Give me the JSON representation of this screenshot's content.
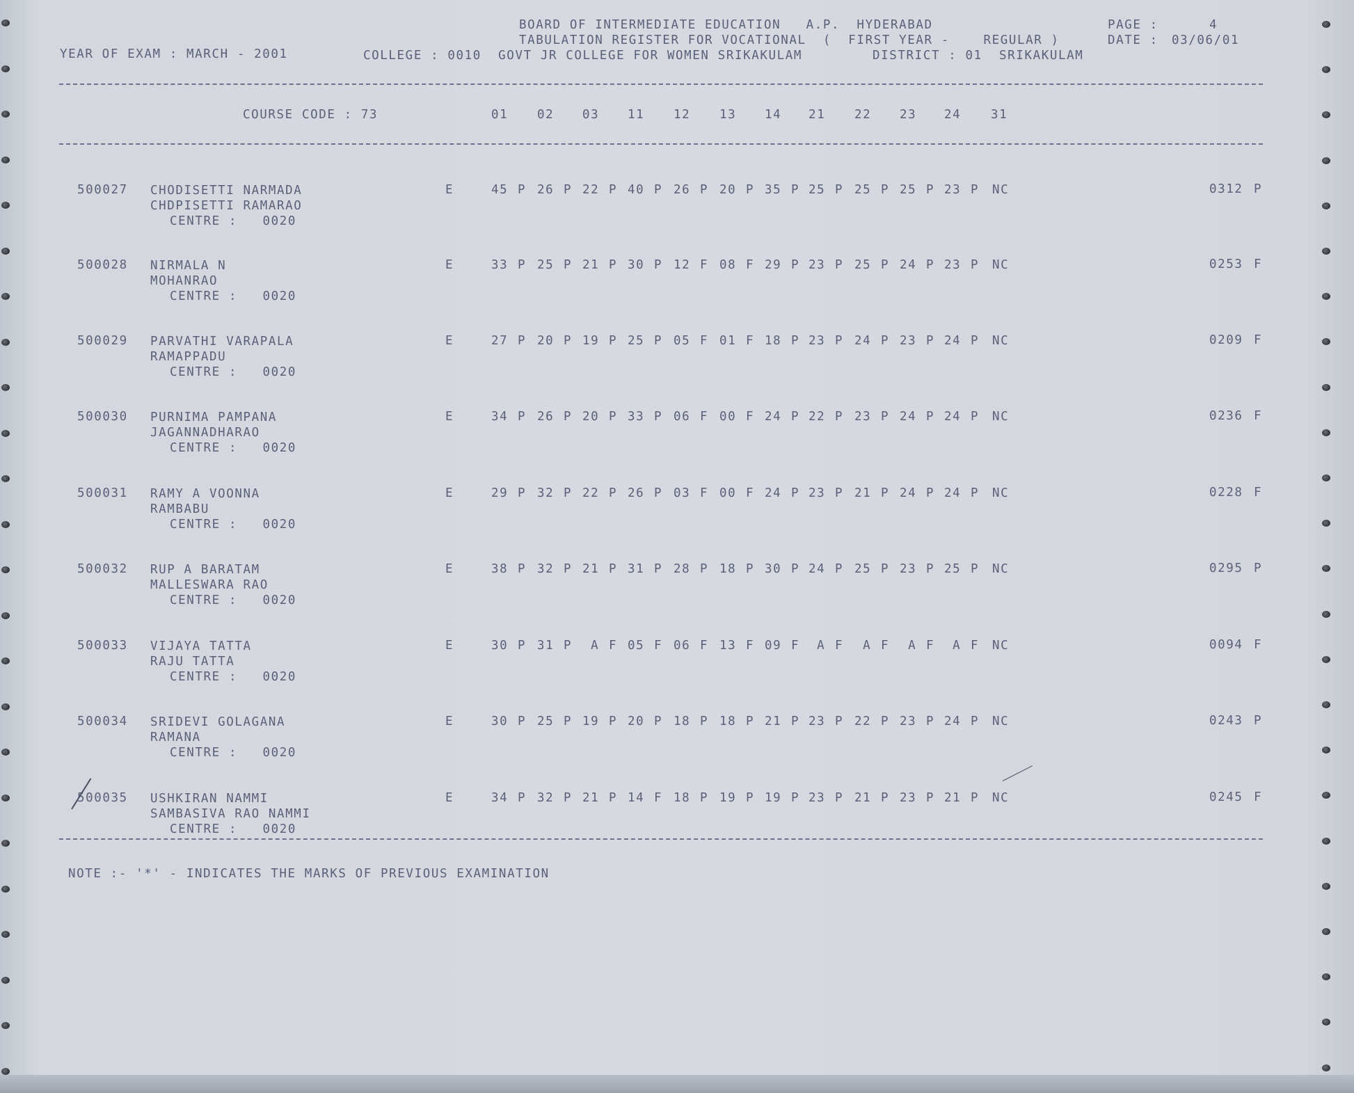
{
  "header": {
    "board": "BOARD OF INTERMEDIATE EDUCATION   A.P.  HYDERABAD",
    "register": "TABULATION REGISTER FOR VOCATIONAL  (  FIRST YEAR -    REGULAR )",
    "page_label": "PAGE :",
    "page_number": "4",
    "date_label": "DATE :",
    "date_value": "03/06/01",
    "year_of_exam": "YEAR OF EXAM : MARCH - 2001",
    "college": "COLLEGE : 0010  GOVT JR COLLEGE FOR WOMEN SRIKAKULAM",
    "district": "DISTRICT : 01  SRIKAKULAM"
  },
  "columns": {
    "course_code": "COURSE CODE : 73",
    "codes": [
      "01",
      "02",
      "03",
      "11",
      "12",
      "13",
      "14",
      "21",
      "22",
      "23",
      "24",
      "31"
    ]
  },
  "students": [
    {
      "roll": "500027",
      "name": "CHODISETTI NARMADA",
      "parent": "CHDPISETTI RAMARAO",
      "centre": "CENTRE :   0020",
      "medium": "E",
      "marks": [
        "45",
        "P",
        "26",
        "P",
        "22",
        "P",
        "40",
        "P",
        "26",
        "P",
        "20",
        "P",
        "35",
        "P",
        "25",
        "P",
        "25",
        "P",
        "25",
        "P",
        "23",
        "P",
        "NC"
      ],
      "total": "0312",
      "result": "P"
    },
    {
      "roll": "500028",
      "name": "NIRMALA N",
      "parent": "MOHANRAO",
      "centre": "CENTRE :   0020",
      "medium": "E",
      "marks": [
        "33",
        "P",
        "25",
        "P",
        "21",
        "P",
        "30",
        "P",
        "12",
        "F",
        "08",
        "F",
        "29",
        "P",
        "23",
        "P",
        "25",
        "P",
        "24",
        "P",
        "23",
        "P",
        "NC"
      ],
      "total": "0253",
      "result": "F"
    },
    {
      "roll": "500029",
      "name": "PARVATHI VARAPALA",
      "parent": "RAMAPPADU",
      "centre": "CENTRE :   0020",
      "medium": "E",
      "marks": [
        "27",
        "P",
        "20",
        "P",
        "19",
        "P",
        "25",
        "P",
        "05",
        "F",
        "01",
        "F",
        "18",
        "P",
        "23",
        "P",
        "24",
        "P",
        "23",
        "P",
        "24",
        "P",
        "NC"
      ],
      "total": "0209",
      "result": "F"
    },
    {
      "roll": "500030",
      "name": "PURNIMA PAMPANA",
      "parent": "JAGANNADHARAO",
      "centre": "CENTRE :   0020",
      "medium": "E",
      "marks": [
        "34",
        "P",
        "26",
        "P",
        "20",
        "P",
        "33",
        "P",
        "06",
        "F",
        "00",
        "F",
        "24",
        "P",
        "22",
        "P",
        "23",
        "P",
        "24",
        "P",
        "24",
        "P",
        "NC"
      ],
      "total": "0236",
      "result": "F"
    },
    {
      "roll": "500031",
      "name": "RAMY A VOONNA",
      "parent": "RAMBABU",
      "centre": "CENTRE :   0020",
      "medium": "E",
      "marks": [
        "29",
        "P",
        "32",
        "P",
        "22",
        "P",
        "26",
        "P",
        "03",
        "F",
        "00",
        "F",
        "24",
        "P",
        "23",
        "P",
        "21",
        "P",
        "24",
        "P",
        "24",
        "P",
        "NC"
      ],
      "total": "0228",
      "result": "F"
    },
    {
      "roll": "500032",
      "name": "RUP A BARATAM",
      "parent": "MALLESWARA RAO",
      "centre": "CENTRE :   0020",
      "medium": "E",
      "marks": [
        "38",
        "P",
        "32",
        "P",
        "21",
        "P",
        "31",
        "P",
        "28",
        "P",
        "18",
        "P",
        "30",
        "P",
        "24",
        "P",
        "25",
        "P",
        "23",
        "P",
        "25",
        "P",
        "NC"
      ],
      "total": "0295",
      "result": "P"
    },
    {
      "roll": "500033",
      "name": "VIJAYA TATTA",
      "parent": "RAJU TATTA",
      "centre": "CENTRE :   0020",
      "medium": "E",
      "marks": [
        "30",
        "P",
        "31",
        "P",
        " A",
        "F",
        "05",
        "F",
        "06",
        "F",
        "13",
        "F",
        "09",
        "F",
        " A",
        "F",
        " A",
        "F",
        " A",
        "F",
        " A",
        "F",
        "NC"
      ],
      "total": "0094",
      "result": "F"
    },
    {
      "roll": "500034",
      "name": "SRIDEVI GOLAGANA",
      "parent": "RAMANA",
      "centre": "CENTRE :   0020",
      "medium": "E",
      "marks": [
        "30",
        "P",
        "25",
        "P",
        "19",
        "P",
        "20",
        "P",
        "18",
        "P",
        "18",
        "P",
        "21",
        "P",
        "23",
        "P",
        "22",
        "P",
        "23",
        "P",
        "24",
        "P",
        "NC"
      ],
      "total": "0243",
      "result": "P"
    },
    {
      "roll": "500035",
      "name": "USHKIRAN NAMMI",
      "parent": "SAMBASIVA RAO NAMMI",
      "centre": "CENTRE :   0020",
      "medium": "E",
      "marks": [
        "34",
        "P",
        "32",
        "P",
        "21",
        "P",
        "14",
        "F",
        "18",
        "P",
        "19",
        "P",
        "19",
        "P",
        "23",
        "P",
        "21",
        "P",
        "23",
        "P",
        "21",
        "P",
        "NC"
      ],
      "total": "0245",
      "result": "F"
    }
  ],
  "note": "NOTE :- '*' - INDICATES THE MARKS OF PREVIOUS EXAMINATION"
}
